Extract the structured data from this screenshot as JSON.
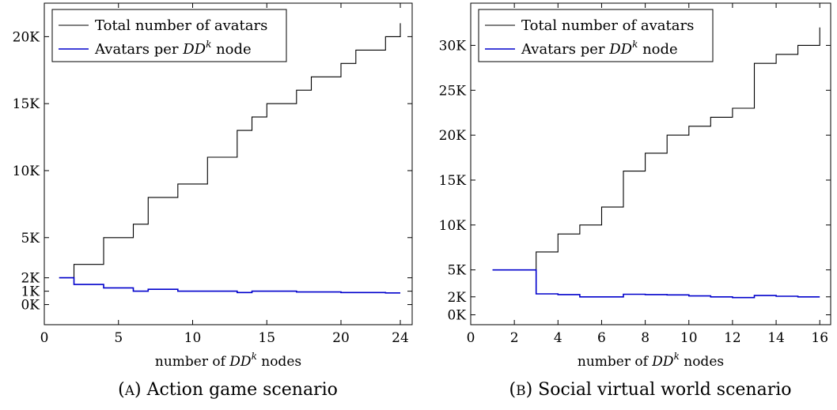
{
  "chart_data": [
    {
      "type": "line",
      "caption_tag": "(A)",
      "caption": "Action game scenario",
      "xlabel": "number of DD^k nodes",
      "xlabel_parts": {
        "pre": "number of ",
        "dd": "DD",
        "sup": "k",
        "post": " nodes"
      },
      "xlim": [
        0,
        24.8
      ],
      "ylim": [
        -1500,
        22500
      ],
      "xticks": [
        0,
        5,
        10,
        15,
        20,
        24
      ],
      "yticks": [
        {
          "value": 0,
          "label": "0K"
        },
        {
          "value": 1000,
          "label": "1K"
        },
        {
          "value": 2000,
          "label": "2K"
        },
        {
          "value": 5000,
          "label": "5K"
        },
        {
          "value": 10000,
          "label": "10K"
        },
        {
          "value": 15000,
          "label": "15K"
        },
        {
          "value": 20000,
          "label": "20K"
        }
      ],
      "legend": [
        {
          "label": "Total number of avatars",
          "color": "#000000"
        },
        {
          "label_pre": "Avatars per ",
          "label_dd": "DD",
          "label_sup": "k",
          "label_post": " node",
          "color": "#0000cc"
        }
      ],
      "series": [
        {
          "name": "Total number of avatars",
          "color": "#000000",
          "x": [
            1,
            2,
            4,
            6,
            7,
            9,
            11,
            13,
            14,
            15,
            17,
            18,
            20,
            21,
            23,
            24
          ],
          "y": [
            2000,
            3000,
            5000,
            6000,
            8000,
            9000,
            11000,
            13000,
            14000,
            15000,
            16000,
            17000,
            18000,
            19000,
            20000,
            21000
          ]
        },
        {
          "name": "Avatars per DD^k node",
          "color": "#0000cc",
          "x": [
            1,
            2,
            4,
            6,
            7,
            9,
            11,
            13,
            14,
            15,
            17,
            18,
            20,
            21,
            23,
            24
          ],
          "y": [
            2000,
            1500,
            1250,
            1000,
            1140,
            1000,
            1000,
            900,
            1000,
            1000,
            940,
            940,
            900,
            900,
            870,
            870
          ]
        }
      ]
    },
    {
      "type": "line",
      "caption_tag": "(B)",
      "caption": "Social virtual world scenario",
      "xlabel": "number of DD^k nodes",
      "xlabel_parts": {
        "pre": "number of ",
        "dd": "DD",
        "sup": "k",
        "post": " nodes"
      },
      "xlim": [
        0,
        16.5
      ],
      "ylim": [
        -1100,
        34700
      ],
      "xticks": [
        0,
        2,
        4,
        6,
        8,
        10,
        12,
        14,
        16
      ],
      "yticks": [
        {
          "value": 0,
          "label": "0K"
        },
        {
          "value": 2000,
          "label": "2K"
        },
        {
          "value": 5000,
          "label": "5K"
        },
        {
          "value": 10000,
          "label": "10K"
        },
        {
          "value": 15000,
          "label": "15K"
        },
        {
          "value": 20000,
          "label": "20K"
        },
        {
          "value": 25000,
          "label": "25K"
        },
        {
          "value": 30000,
          "label": "30K"
        }
      ],
      "legend": [
        {
          "label": "Total number of avatars",
          "color": "#000000"
        },
        {
          "label_pre": "Avatars per ",
          "label_dd": "DD",
          "label_sup": "k",
          "label_post": " node",
          "color": "#0000cc"
        }
      ],
      "series": [
        {
          "name": "Total number of avatars",
          "color": "#000000",
          "x": [
            1,
            3,
            4,
            5,
            6,
            7,
            8,
            9,
            10,
            11,
            12,
            13,
            14,
            15,
            16
          ],
          "y": [
            5000,
            7000,
            9000,
            10000,
            12000,
            16000,
            18000,
            20000,
            21000,
            22000,
            23000,
            28000,
            29000,
            30000,
            32000
          ]
        },
        {
          "name": "Avatars per DD^k node",
          "color": "#0000cc",
          "x": [
            1,
            3,
            4,
            5,
            6,
            7,
            8,
            9,
            10,
            11,
            12,
            13,
            14,
            15,
            16
          ],
          "y": [
            5000,
            2330,
            2250,
            2000,
            2000,
            2290,
            2250,
            2220,
            2100,
            2000,
            1920,
            2150,
            2070,
            2000,
            2000
          ]
        }
      ]
    }
  ]
}
